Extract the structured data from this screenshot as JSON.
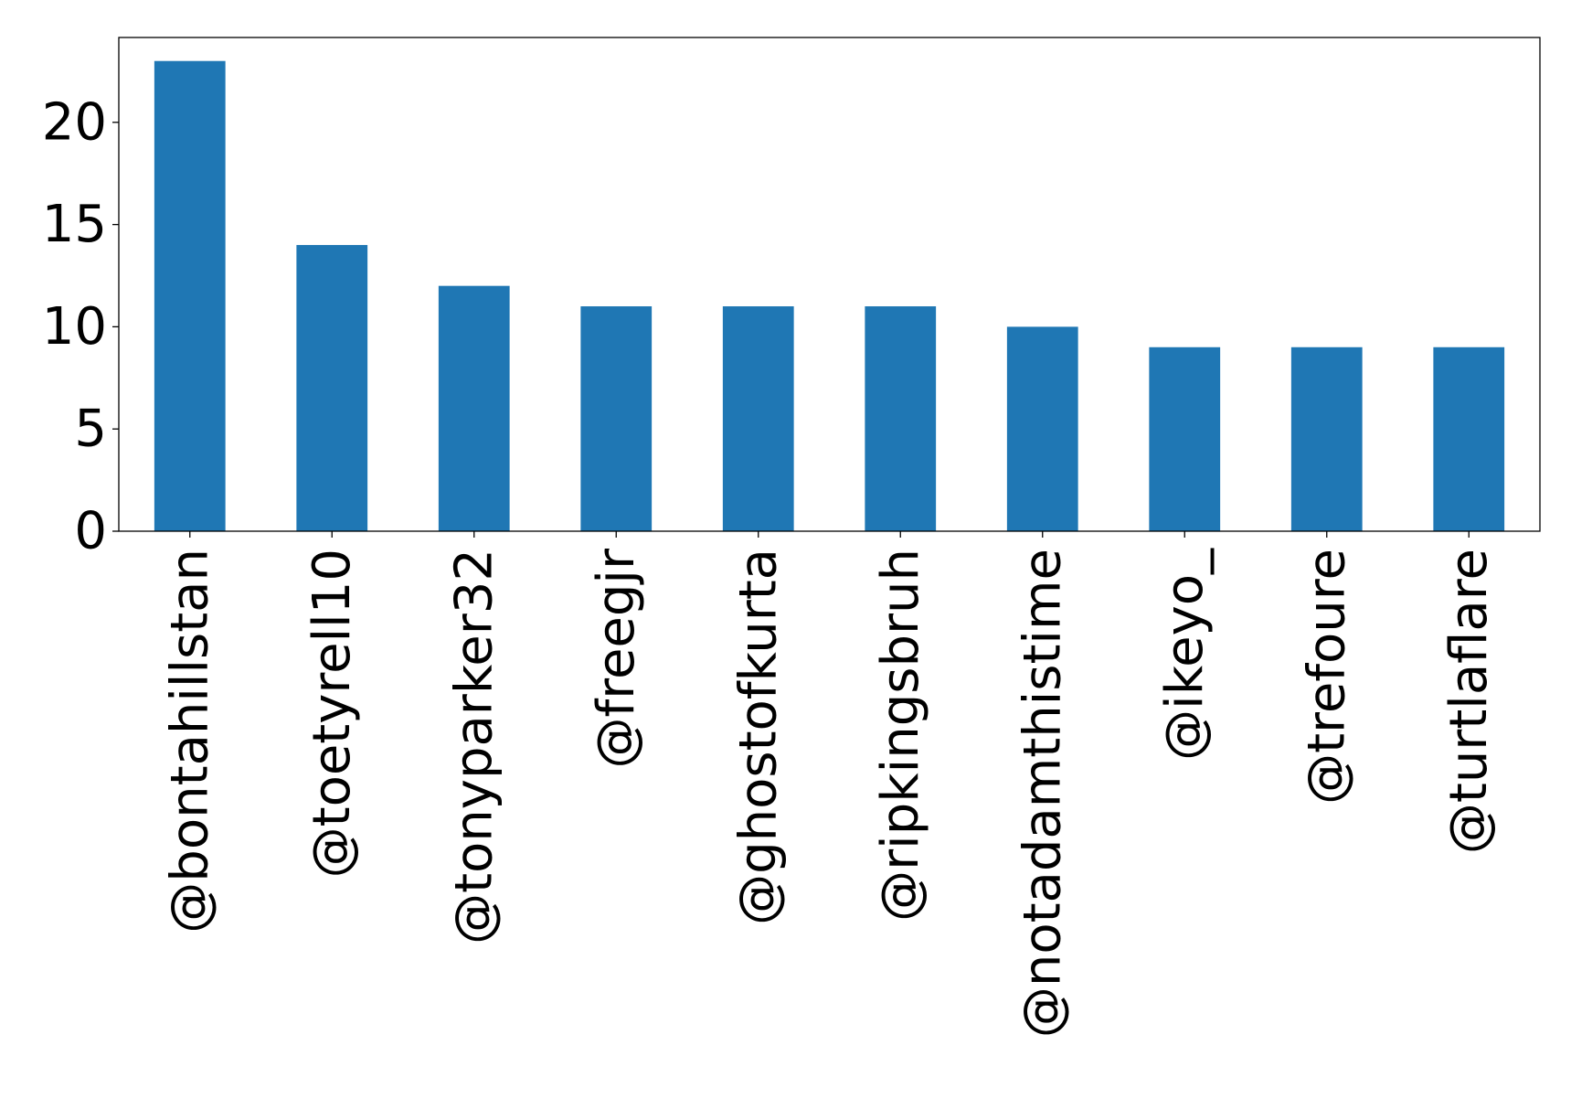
{
  "chart_data": {
    "type": "bar",
    "categories": [
      "@bontahillstan",
      "@toetyrell10",
      "@tonyparker32",
      "@freegjr",
      "@ghostofkurta",
      "@ripkingsbruh",
      "@notadamthistime",
      "@ikeyo_",
      "@trefoure",
      "@turtlaflare"
    ],
    "values": [
      23,
      14,
      12,
      11,
      11,
      11,
      10,
      9,
      9,
      9
    ],
    "title": "",
    "xlabel": "",
    "ylabel": "",
    "ylim": [
      0,
      24.15
    ],
    "yticks": [
      0,
      5,
      10,
      15,
      20
    ],
    "grid": false,
    "legend": "none",
    "bar_color": "#1f77b4",
    "x_tick_rotation": 90
  }
}
